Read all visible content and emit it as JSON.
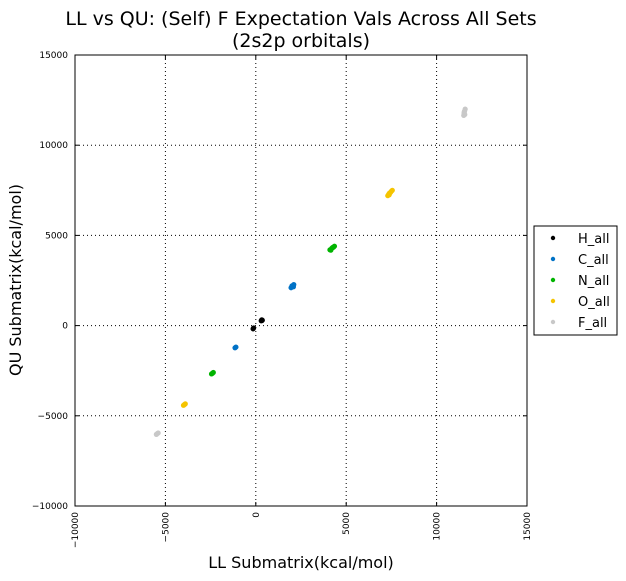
{
  "chart_data": {
    "type": "scatter",
    "title": "LL vs QU: (Self) F Expectation Vals Across All Sets",
    "subtitle": "(2s2p orbitals)",
    "xlabel": "LL Submatrix(kcal/mol)",
    "ylabel": "QU Submatrix(kcal/mol)",
    "xlim": [
      -10000,
      15000
    ],
    "ylim": [
      -10000,
      15000
    ],
    "xticks": [
      -10000,
      -5000,
      0,
      5000,
      10000,
      15000
    ],
    "yticks": [
      -10000,
      -5000,
      0,
      5000,
      10000,
      15000
    ],
    "xtick_labels": [
      "−10000",
      "−5000",
      "0",
      "5000",
      "10000",
      "15000"
    ],
    "ytick_labels": [
      "−10000",
      "−5000",
      "0",
      "5000",
      "10000",
      "15000"
    ],
    "grid": true,
    "legend_position": "outside-right",
    "series": [
      {
        "name": "H_all",
        "color": "#000000",
        "points": [
          [
            -150,
            -180
          ],
          [
            -120,
            -130
          ],
          [
            300,
            270
          ],
          [
            330,
            320
          ],
          [
            360,
            300
          ],
          [
            340,
            280
          ]
        ]
      },
      {
        "name": "C_all",
        "color": "#0072c6",
        "points": [
          [
            -1150,
            -1230
          ],
          [
            -1100,
            -1190
          ],
          [
            1950,
            2100
          ],
          [
            2000,
            2150
          ],
          [
            2050,
            2200
          ],
          [
            2100,
            2270
          ],
          [
            2000,
            2200
          ],
          [
            2080,
            2150
          ]
        ]
      },
      {
        "name": "N_all",
        "color": "#00b400",
        "points": [
          [
            -2450,
            -2680
          ],
          [
            -2400,
            -2640
          ],
          [
            -2350,
            -2600
          ],
          [
            4100,
            4200
          ],
          [
            4200,
            4280
          ],
          [
            4300,
            4350
          ],
          [
            4350,
            4400
          ],
          [
            4150,
            4180
          ],
          [
            4250,
            4330
          ]
        ]
      },
      {
        "name": "O_all",
        "color": "#f5c400",
        "points": [
          [
            -4000,
            -4420
          ],
          [
            -3950,
            -4380
          ],
          [
            -3900,
            -4340
          ],
          [
            7300,
            7200
          ],
          [
            7350,
            7280
          ],
          [
            7400,
            7350
          ],
          [
            7500,
            7450
          ],
          [
            7550,
            7500
          ],
          [
            7450,
            7380
          ],
          [
            7380,
            7250
          ]
        ]
      },
      {
        "name": "F_all",
        "color": "#c8c8c8",
        "points": [
          [
            -5500,
            -6030
          ],
          [
            -5450,
            -5990
          ],
          [
            -5400,
            -5950
          ],
          [
            11500,
            11650
          ],
          [
            11520,
            11780
          ],
          [
            11550,
            11900
          ],
          [
            11580,
            12000
          ],
          [
            11530,
            11850
          ],
          [
            11560,
            11700
          ]
        ]
      }
    ]
  }
}
